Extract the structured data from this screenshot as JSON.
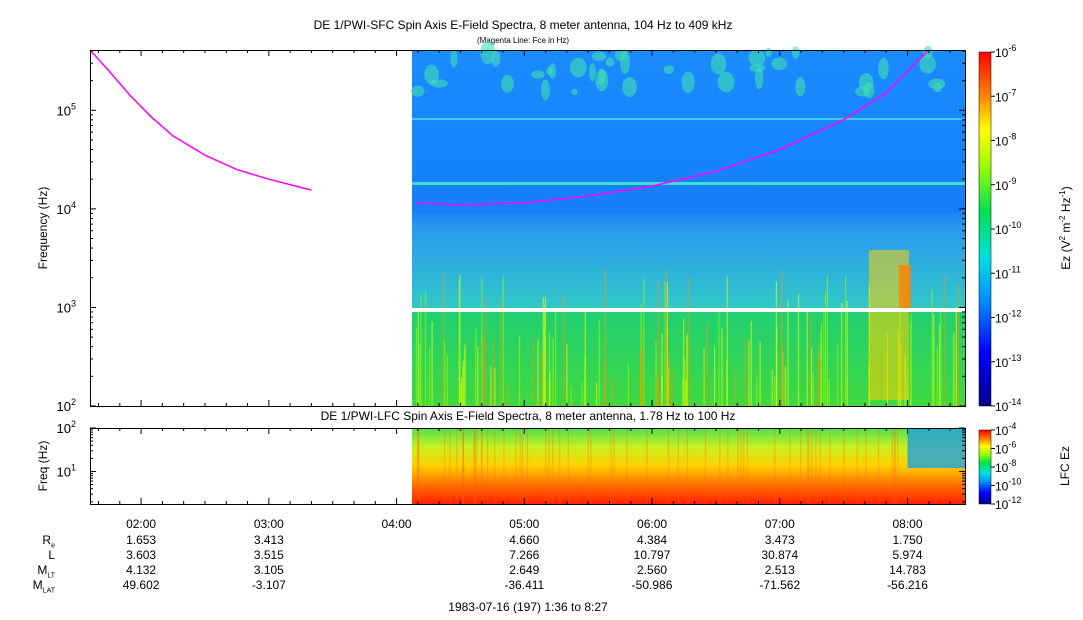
{
  "header": {
    "title": "DE 1/PWI-SFC  Spin Axis E-Field Spectra, 8 meter antenna, 104 Hz to 409 kHz",
    "subtitle": "(Magenta Line: Fce in Hz)"
  },
  "colors": {
    "fce_line": "#ff00ff",
    "gap_line": "#ffffff"
  },
  "chart_data": [
    {
      "type": "heatmap",
      "title": "DE 1/PWI-SFC  Spin Axis E-Field Spectra, 8 meter antenna, 104 Hz to 409 kHz",
      "subtitle": "(Magenta Line: Fce in Hz)",
      "ylabel": "Frequency (Hz)",
      "yscale": "log",
      "ylim": [
        100,
        409000
      ],
      "yticks": [
        "10^2",
        "10^3",
        "10^4",
        "10^5"
      ],
      "xlim": [
        "01:36",
        "08:27"
      ],
      "data_start": "04:09",
      "colorbar": {
        "label": "Ez (V^2 m^-2 Hz^-1)",
        "scale": "log",
        "range": [
          1e-14,
          1e-06
        ],
        "ticks": [
          "10^-6",
          "10^-7",
          "10^-8",
          "10^-9",
          "10^-10",
          "10^-11",
          "10^-12",
          "10^-13",
          "10^-14"
        ]
      },
      "series": [
        {
          "name": "Fce in Hz",
          "x": [
            "01:36",
            "01:45",
            "01:55",
            "02:05",
            "02:15",
            "02:30",
            "02:45",
            "03:00",
            "03:15",
            "03:20"
          ],
          "y": [
            409000,
            250000,
            140000,
            85000,
            55000,
            35000,
            25000,
            20000,
            16500,
            15500
          ]
        },
        {
          "name": "Fce in Hz",
          "x": [
            "04:09",
            "04:30",
            "05:00",
            "05:30",
            "06:00",
            "06:30",
            "07:00",
            "07:30",
            "07:50",
            "08:00",
            "08:10"
          ],
          "y": [
            11500,
            11000,
            11500,
            13500,
            17000,
            24000,
            40000,
            80000,
            150000,
            250000,
            409000
          ]
        }
      ]
    },
    {
      "type": "heatmap",
      "title": "DE 1/PWI-LFC  Spin Axis E-Field Spectra, 8 meter antenna, 1.78 Hz to 100 Hz",
      "ylabel": "Freq (Hz)",
      "yscale": "log",
      "ylim": [
        1.78,
        100
      ],
      "yticks": [
        "10^1",
        "10^2"
      ],
      "xlim": [
        "01:36",
        "08:27"
      ],
      "data_start": "04:09",
      "colorbar": {
        "label": "LFC Ez",
        "scale": "log",
        "range": [
          1e-12,
          0.0001
        ],
        "ticks": [
          "10^-4",
          "10^-6",
          "10^-8",
          "10^-10",
          "10^-12"
        ]
      }
    }
  ],
  "time_axis": {
    "ticks": [
      "02:00",
      "03:00",
      "04:00",
      "05:00",
      "06:00",
      "07:00",
      "08:00"
    ]
  },
  "ephemeris": {
    "rows": [
      {
        "label": "R",
        "sub": "e",
        "values": [
          "1.653",
          "3.413",
          "",
          "4.660",
          "4.384",
          "3.473",
          "1.750"
        ]
      },
      {
        "label": "L",
        "sub": "",
        "values": [
          "3.603",
          "3.515",
          "",
          "7.266",
          "10.797",
          "30.874",
          "5.974"
        ]
      },
      {
        "label": "M",
        "sub": "LT",
        "values": [
          "4.132",
          "3.105",
          "",
          "2.649",
          "2.560",
          "2.513",
          "14.783"
        ]
      },
      {
        "label": "M",
        "sub": "LAT",
        "values": [
          "49.602",
          "-3.107",
          "",
          "-36.411",
          "-50.986",
          "-71.562",
          "-56.216"
        ]
      }
    ]
  },
  "footer": {
    "date_range": "1983-07-16 (197) 1:36 to 8:27"
  }
}
